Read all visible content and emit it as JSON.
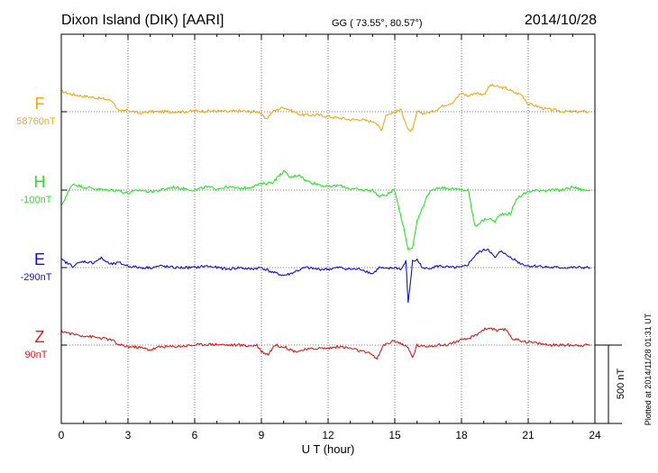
{
  "header": {
    "station": "Dixon Island (DIK)  [AARI]",
    "coords": "GG ( 73.55°,  80.57°)",
    "date": "2014/10/28"
  },
  "footer": {
    "plotted": "Plotted at 2014/11/28 01:31  UT"
  },
  "chart_data": {
    "type": "line",
    "title": "Dixon Island (DIK)  [AARI]",
    "xlabel": "U T (hour)",
    "ylabel": "",
    "xlim": [
      0,
      24
    ],
    "x_ticks": [
      "0",
      "3",
      "6",
      "9",
      "12",
      "15",
      "18",
      "21",
      "24"
    ],
    "grid": true,
    "scale_bar": {
      "label": "500 nT",
      "value_nT": 500
    },
    "series": [
      {
        "name": "F",
        "baseline_label": "58760nT",
        "baseline_nT": 58760,
        "color": "#f0a818",
        "x": [
          0,
          0.5,
          1.0,
          1.5,
          2.0,
          2.3,
          2.6,
          3.0,
          3.5,
          4.0,
          4.5,
          5.0,
          5.5,
          6.0,
          6.5,
          7.0,
          7.5,
          8.0,
          8.5,
          8.9,
          9.2,
          9.5,
          10.0,
          10.3,
          10.8,
          11.5,
          12.0,
          12.5,
          13.0,
          13.5,
          13.8,
          14.1,
          14.4,
          14.6,
          15.0,
          15.3,
          15.6,
          15.8,
          16.0,
          16.3,
          16.7,
          17.2,
          17.6,
          18.0,
          18.3,
          18.6,
          19.0,
          19.3,
          19.6,
          20.0,
          20.4,
          20.7,
          21.0,
          21.3,
          21.7,
          22.2,
          22.7,
          23.2,
          23.7
        ],
        "values": [
          130,
          110,
          100,
          90,
          80,
          70,
          0,
          10,
          -10,
          0,
          0,
          0,
          0,
          5,
          5,
          5,
          0,
          5,
          0,
          0,
          -50,
          0,
          30,
          10,
          -20,
          -20,
          -30,
          -40,
          -50,
          -50,
          -60,
          -60,
          -120,
          -20,
          0,
          10,
          -120,
          -120,
          0,
          -10,
          0,
          40,
          60,
          120,
          100,
          120,
          110,
          170,
          160,
          150,
          120,
          110,
          50,
          40,
          20,
          10,
          0,
          0,
          0
        ]
      },
      {
        "name": "H",
        "baseline_label": "-100nT",
        "baseline_nT": -100,
        "color": "#22e822",
        "x": [
          0,
          0.5,
          1.0,
          1.5,
          2.0,
          2.5,
          3.0,
          3.5,
          4.0,
          4.5,
          5.0,
          5.5,
          6.0,
          6.5,
          7.0,
          7.5,
          8.0,
          8.5,
          9.0,
          9.5,
          10.0,
          10.3,
          10.7,
          11.0,
          11.5,
          12.0,
          12.5,
          13.0,
          13.5,
          14.0,
          14.3,
          14.6,
          15.0,
          15.4,
          15.6,
          15.8,
          16.0,
          16.5,
          17.0,
          17.5,
          18.0,
          18.3,
          18.6,
          18.9,
          19.2,
          19.5,
          19.8,
          20.2,
          20.5,
          21.0,
          21.5,
          22.0,
          22.5,
          23.0,
          23.5,
          23.8
        ],
        "values": [
          -100,
          40,
          20,
          10,
          0,
          0,
          -20,
          0,
          -10,
          0,
          20,
          10,
          0,
          20,
          10,
          20,
          10,
          20,
          40,
          50,
          120,
          80,
          100,
          60,
          40,
          20,
          30,
          10,
          0,
          0,
          -40,
          -30,
          0,
          -240,
          -380,
          -360,
          -200,
          -20,
          20,
          10,
          0,
          0,
          -230,
          -200,
          -180,
          -200,
          -150,
          -150,
          -50,
          -10,
          0,
          0,
          0,
          20,
          0,
          0
        ]
      },
      {
        "name": "E",
        "baseline_label": "-290nT",
        "baseline_nT": -290,
        "color": "#1010e0",
        "x": [
          0,
          0.5,
          1.0,
          1.4,
          1.8,
          2.2,
          2.6,
          3.0,
          3.5,
          4.0,
          4.5,
          5.0,
          5.5,
          6.0,
          6.5,
          7.0,
          7.5,
          8.0,
          8.5,
          9.0,
          9.5,
          10.0,
          10.3,
          10.6,
          11.0,
          11.5,
          12.0,
          12.5,
          13.0,
          13.5,
          14.0,
          14.3,
          14.6,
          15.0,
          15.3,
          15.5,
          15.6,
          15.8,
          16.0,
          16.3,
          16.6,
          17.0,
          17.5,
          18.0,
          18.3,
          18.5,
          18.8,
          19.2,
          19.5,
          19.8,
          20.0,
          20.3,
          20.6,
          21.0,
          21.5,
          22.0,
          22.5,
          23.0,
          23.5,
          23.8
        ],
        "values": [
          50,
          10,
          40,
          30,
          60,
          20,
          30,
          10,
          0,
          0,
          10,
          0,
          0,
          0,
          10,
          0,
          -10,
          0,
          -10,
          0,
          -30,
          -50,
          -40,
          -20,
          0,
          -10,
          -10,
          0,
          -10,
          -10,
          -40,
          0,
          -10,
          0,
          -10,
          40,
          -230,
          40,
          50,
          -10,
          0,
          10,
          0,
          0,
          20,
          60,
          100,
          120,
          60,
          110,
          80,
          60,
          30,
          10,
          10,
          0,
          0,
          0,
          0,
          0
        ]
      },
      {
        "name": "Z",
        "baseline_label": "90nT",
        "baseline_nT": 90,
        "color": "#e01818",
        "x": [
          0,
          0.5,
          1.0,
          1.5,
          2.0,
          2.3,
          2.6,
          3.0,
          3.5,
          4.0,
          4.5,
          5.0,
          5.5,
          6.0,
          6.5,
          7.0,
          7.5,
          8.0,
          8.5,
          8.8,
          9.0,
          9.3,
          9.6,
          10.0,
          10.5,
          11.0,
          11.5,
          12.0,
          12.5,
          13.0,
          13.5,
          14.0,
          14.2,
          14.5,
          15.0,
          15.4,
          15.6,
          15.8,
          16.0,
          16.3,
          16.8,
          17.3,
          17.7,
          18.0,
          18.3,
          18.6,
          19.0,
          19.3,
          19.6,
          20.0,
          20.3,
          20.6,
          21.0,
          21.5,
          22.0,
          22.5,
          23.0,
          23.5,
          23.8
        ],
        "values": [
          90,
          70,
          60,
          50,
          40,
          30,
          0,
          -10,
          -15,
          -30,
          -10,
          -10,
          -5,
          0,
          5,
          5,
          0,
          0,
          -5,
          0,
          -40,
          -60,
          0,
          -10,
          -40,
          -30,
          -20,
          -20,
          -10,
          -20,
          -40,
          -60,
          -90,
          0,
          30,
          0,
          -20,
          -80,
          0,
          -10,
          0,
          0,
          20,
          30,
          40,
          60,
          100,
          110,
          90,
          100,
          40,
          30,
          20,
          10,
          0,
          0,
          0,
          0,
          0
        ]
      }
    ]
  }
}
